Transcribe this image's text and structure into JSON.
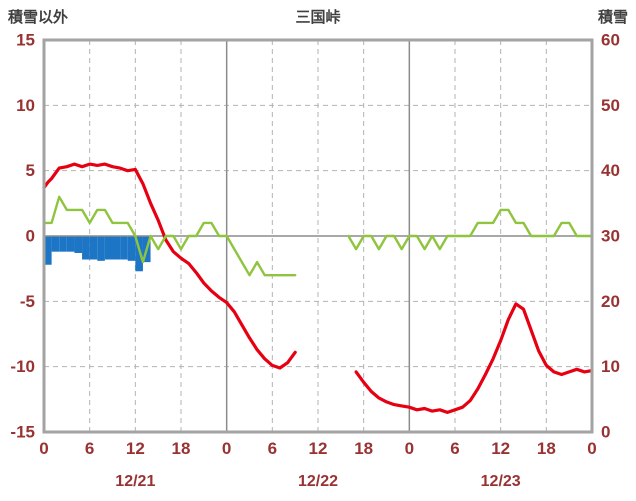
{
  "chart_data": {
    "type": "line",
    "title": "三国峠",
    "left_axis": {
      "label": "積雪以外",
      "min": -15,
      "max": 15,
      "ticks": [
        15,
        10,
        5,
        0,
        -5,
        -10,
        -15
      ]
    },
    "right_axis": {
      "label": "積雪",
      "min": 0,
      "max": 60,
      "ticks": [
        60,
        50,
        40,
        30,
        20,
        10,
        0
      ]
    },
    "x_axis": {
      "total_hours": 72,
      "tick_interval": 6,
      "hour_labels": [
        "0",
        "6",
        "12",
        "18",
        "0",
        "6",
        "12",
        "18",
        "0",
        "6",
        "12",
        "18",
        "0"
      ],
      "day_boundaries": [
        24,
        48
      ],
      "date_labels": [
        {
          "text": "12/21",
          "center_hour": 12
        },
        {
          "text": "12/22",
          "center_hour": 36
        },
        {
          "text": "12/23",
          "center_hour": 60
        }
      ]
    },
    "colors": {
      "red_line": "#e60012",
      "green_line": "#8fc43e",
      "blue_bars": "#1d76c5",
      "tick_label": "#993333",
      "title_text": "#404040",
      "grid_dashed": "#b3b3b3",
      "grid_solid": "#8c8c8c",
      "frame": "#a3a3a3",
      "background": "#ffffff"
    },
    "series": [
      {
        "name": "red-line",
        "axis": "left",
        "color": "#e60012",
        "width": 3.2,
        "segments": [
          [
            [
              0,
              3.7
            ],
            [
              0.5,
              4.1
            ],
            [
              1,
              4.4
            ],
            [
              2,
              5.2
            ],
            [
              3,
              5.3
            ],
            [
              4,
              5.5
            ],
            [
              5,
              5.3
            ],
            [
              6,
              5.5
            ],
            [
              7,
              5.4
            ],
            [
              8,
              5.5
            ],
            [
              9,
              5.3
            ],
            [
              10,
              5.2
            ],
            [
              11,
              5.0
            ],
            [
              12,
              5.1
            ],
            [
              13,
              4.0
            ],
            [
              14,
              2.5
            ],
            [
              15,
              1.2
            ],
            [
              16,
              -0.3
            ],
            [
              17,
              -1.2
            ],
            [
              18,
              -1.7
            ],
            [
              19,
              -2.1
            ],
            [
              20,
              -2.8
            ],
            [
              21,
              -3.6
            ],
            [
              22,
              -4.2
            ],
            [
              23,
              -4.7
            ],
            [
              24,
              -5.1
            ],
            [
              25,
              -5.8
            ],
            [
              26,
              -6.8
            ],
            [
              27,
              -7.8
            ],
            [
              28,
              -8.7
            ],
            [
              29,
              -9.4
            ],
            [
              30,
              -9.9
            ],
            [
              31,
              -10.1
            ],
            [
              32,
              -9.7
            ],
            [
              33,
              -8.9
            ]
          ],
          [
            [
              41,
              -10.4
            ],
            [
              42,
              -11.2
            ],
            [
              43,
              -11.9
            ],
            [
              44,
              -12.4
            ],
            [
              45,
              -12.7
            ],
            [
              46,
              -12.9
            ],
            [
              47,
              -13.0
            ],
            [
              48,
              -13.1
            ],
            [
              49,
              -13.3
            ],
            [
              50,
              -13.2
            ],
            [
              51,
              -13.4
            ],
            [
              52,
              -13.3
            ],
            [
              53,
              -13.5
            ],
            [
              54,
              -13.3
            ],
            [
              55,
              -13.1
            ],
            [
              56,
              -12.6
            ],
            [
              57,
              -11.7
            ],
            [
              58,
              -10.6
            ],
            [
              59,
              -9.4
            ],
            [
              60,
              -8.0
            ],
            [
              61,
              -6.4
            ],
            [
              62,
              -5.2
            ],
            [
              63,
              -5.6
            ],
            [
              64,
              -7.2
            ],
            [
              65,
              -8.8
            ],
            [
              66,
              -9.9
            ],
            [
              67,
              -10.4
            ],
            [
              68,
              -10.6
            ],
            [
              69,
              -10.4
            ],
            [
              70,
              -10.2
            ],
            [
              71,
              -10.4
            ],
            [
              72,
              -10.3
            ]
          ]
        ]
      },
      {
        "name": "green-line",
        "axis": "right",
        "color": "#8fc43e",
        "width": 2.4,
        "segments": [
          [
            [
              0,
              32
            ],
            [
              1,
              32
            ],
            [
              2,
              36
            ],
            [
              3,
              34
            ],
            [
              4,
              34
            ],
            [
              5,
              34
            ],
            [
              6,
              32
            ],
            [
              7,
              34
            ],
            [
              8,
              34
            ],
            [
              9,
              32
            ],
            [
              10,
              32
            ],
            [
              11,
              32
            ],
            [
              12,
              30
            ],
            [
              13,
              26
            ],
            [
              14,
              30
            ],
            [
              15,
              28
            ],
            [
              16,
              30
            ],
            [
              17,
              30
            ],
            [
              18,
              28
            ],
            [
              19,
              30
            ],
            [
              20,
              30
            ],
            [
              21,
              32
            ],
            [
              22,
              32
            ],
            [
              23,
              30
            ],
            [
              24,
              30
            ],
            [
              25,
              28
            ],
            [
              26,
              26
            ],
            [
              27,
              24
            ],
            [
              28,
              26
            ],
            [
              29,
              24
            ],
            [
              30,
              24
            ],
            [
              31,
              24
            ],
            [
              32,
              24
            ],
            [
              33,
              24
            ]
          ],
          [
            [
              40,
              30
            ],
            [
              41,
              28
            ],
            [
              42,
              30
            ],
            [
              43,
              30
            ],
            [
              44,
              28
            ],
            [
              45,
              30
            ],
            [
              46,
              30
            ],
            [
              47,
              28
            ],
            [
              48,
              30
            ],
            [
              49,
              30
            ],
            [
              50,
              28
            ],
            [
              51,
              30
            ],
            [
              52,
              28
            ],
            [
              53,
              30
            ],
            [
              54,
              30
            ],
            [
              55,
              30
            ],
            [
              56,
              30
            ],
            [
              57,
              32
            ],
            [
              58,
              32
            ],
            [
              59,
              32
            ],
            [
              60,
              34
            ],
            [
              61,
              34
            ],
            [
              62,
              32
            ],
            [
              63,
              32
            ],
            [
              64,
              30
            ],
            [
              65,
              30
            ],
            [
              66,
              30
            ],
            [
              67,
              30
            ],
            [
              68,
              32
            ],
            [
              69,
              32
            ],
            [
              70,
              30
            ],
            [
              71,
              30
            ],
            [
              72,
              30
            ]
          ]
        ]
      }
    ],
    "bars": {
      "name": "blue-bars",
      "axis": "left",
      "color": "#1d76c5",
      "values": [
        [
          0,
          -2.2
        ],
        [
          1,
          -1.2
        ],
        [
          2,
          -1.2
        ],
        [
          3,
          -1.2
        ],
        [
          4,
          -1.3
        ],
        [
          5,
          -1.8
        ],
        [
          6,
          -1.8
        ],
        [
          7,
          -1.9
        ],
        [
          8,
          -1.8
        ],
        [
          9,
          -1.8
        ],
        [
          10,
          -1.8
        ],
        [
          11,
          -1.9
        ],
        [
          12,
          -2.7
        ],
        [
          13,
          -2.0
        ]
      ]
    }
  }
}
